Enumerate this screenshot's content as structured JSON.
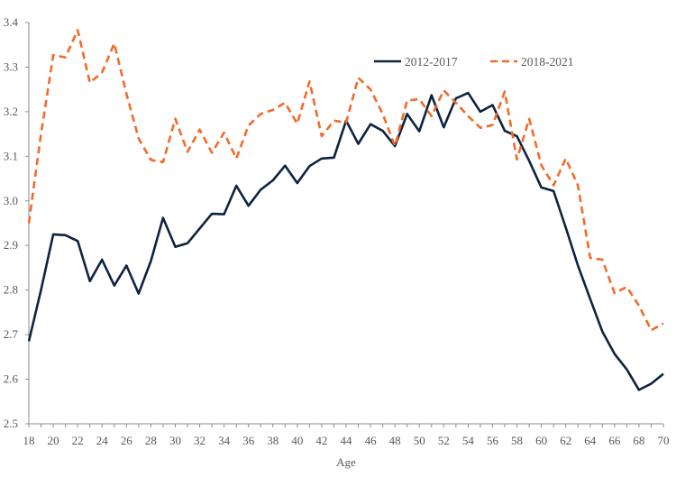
{
  "chart_data": {
    "type": "line",
    "title": "",
    "xlabel": "Age",
    "ylabel": "",
    "xlim": [
      18,
      70
    ],
    "ylim": [
      2.5,
      3.4
    ],
    "yticks": [
      "2.5",
      "2.6",
      "2.7",
      "2.8",
      "2.9",
      "3.0",
      "3.1",
      "3.2",
      "3.3",
      "3.4"
    ],
    "xticks": [
      "18",
      "20",
      "22",
      "24",
      "26",
      "28",
      "30",
      "32",
      "34",
      "36",
      "38",
      "40",
      "42",
      "44",
      "46",
      "48",
      "50",
      "52",
      "54",
      "56",
      "58",
      "60",
      "62",
      "64",
      "66",
      "68",
      "70"
    ],
    "grid": false,
    "legend_position": "top-right",
    "x": [
      18,
      19,
      20,
      21,
      22,
      23,
      24,
      25,
      26,
      27,
      28,
      29,
      30,
      31,
      32,
      33,
      34,
      35,
      36,
      37,
      38,
      39,
      40,
      41,
      42,
      43,
      44,
      45,
      46,
      47,
      48,
      49,
      50,
      51,
      52,
      53,
      54,
      55,
      56,
      57,
      58,
      59,
      60,
      61,
      62,
      63,
      64,
      65,
      66,
      67,
      68,
      69,
      70
    ],
    "series": [
      {
        "name": "2012-2017",
        "color": "#0d2340",
        "style": "solid",
        "values": [
          2.685,
          2.8,
          2.925,
          2.923,
          2.91,
          2.82,
          2.868,
          2.81,
          2.855,
          2.792,
          2.865,
          2.962,
          2.897,
          2.905,
          2.938,
          2.971,
          2.97,
          3.034,
          2.989,
          3.025,
          3.046,
          3.079,
          3.04,
          3.078,
          3.095,
          3.097,
          3.18,
          3.128,
          3.172,
          3.157,
          3.123,
          3.195,
          3.156,
          3.237,
          3.165,
          3.23,
          3.242,
          3.2,
          3.215,
          3.157,
          3.145,
          3.09,
          3.03,
          3.022,
          2.94,
          2.855,
          2.78,
          2.707,
          2.657,
          2.622,
          2.576,
          2.59,
          2.612
        ]
      },
      {
        "name": "2018-2021",
        "color": "#f26b2a",
        "style": "dashed",
        "values": [
          2.95,
          3.15,
          3.327,
          3.322,
          3.383,
          3.265,
          3.288,
          3.353,
          3.24,
          3.14,
          3.092,
          3.087,
          3.184,
          3.11,
          3.16,
          3.108,
          3.153,
          3.095,
          3.169,
          3.195,
          3.204,
          3.22,
          3.173,
          3.268,
          3.145,
          3.18,
          3.176,
          3.276,
          3.25,
          3.195,
          3.123,
          3.225,
          3.228,
          3.19,
          3.248,
          3.22,
          3.19,
          3.164,
          3.17,
          3.245,
          3.093,
          3.184,
          3.08,
          3.035,
          3.095,
          3.035,
          2.872,
          2.868,
          2.793,
          2.807,
          2.765,
          2.71,
          2.725
        ]
      }
    ]
  }
}
